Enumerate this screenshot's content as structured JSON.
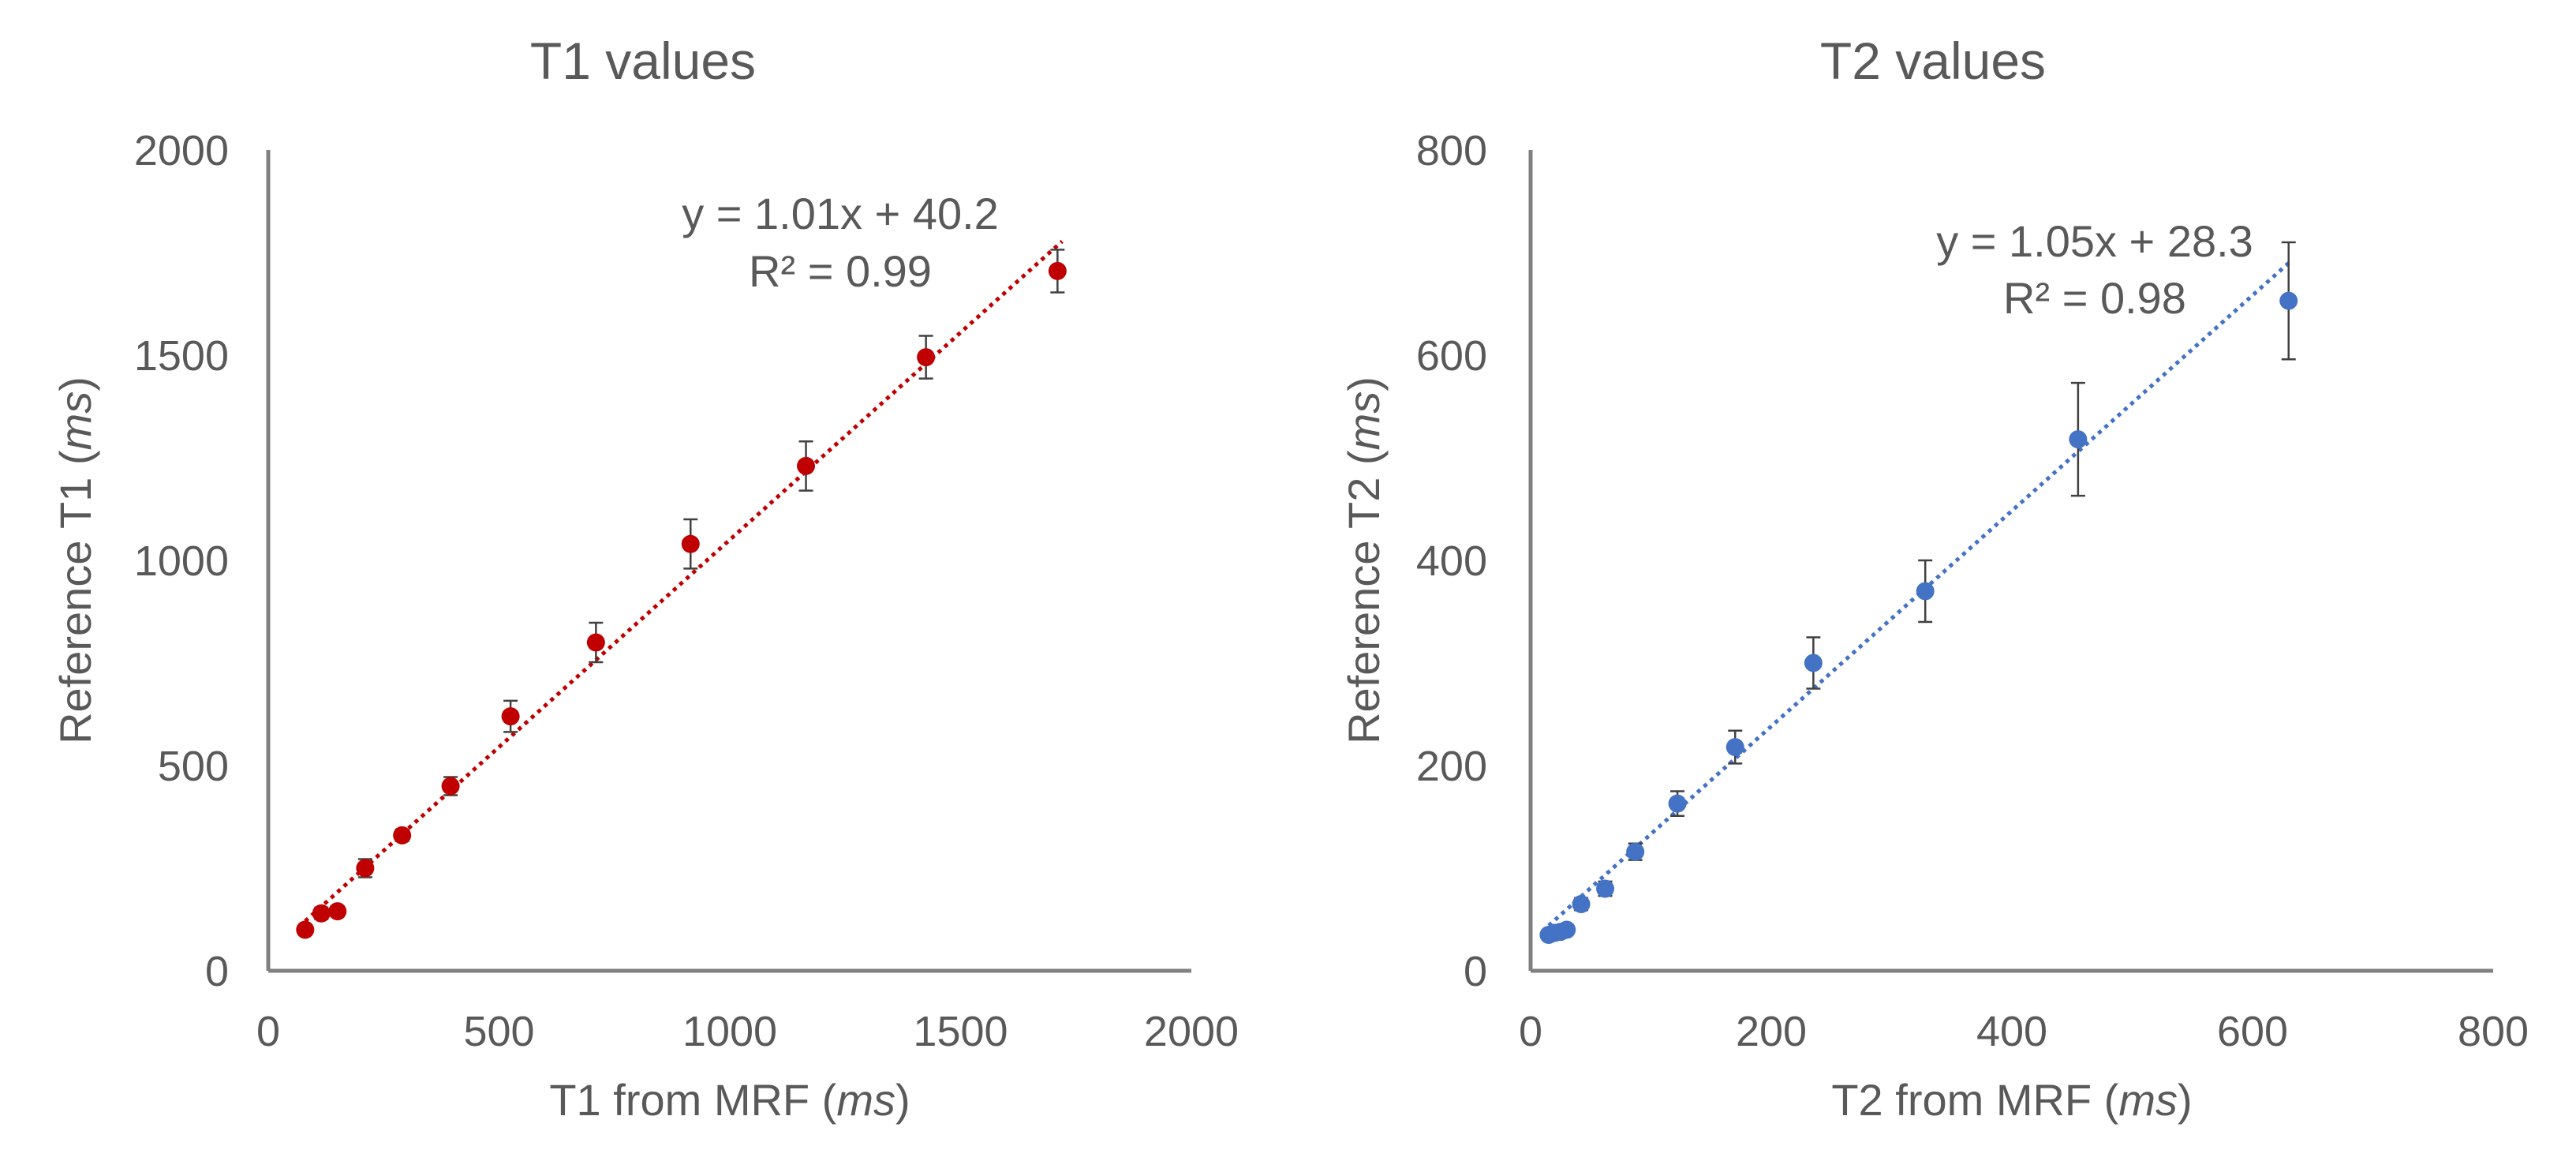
{
  "chart_data": [
    {
      "type": "scatter",
      "title": "T1 values",
      "xlabel_main": "T1 from MRF",
      "xlabel_unit": "ms",
      "ylabel_main": "Reference T1",
      "ylabel_unit": "ms",
      "xlim": [
        0,
        2000
      ],
      "ylim": [
        0,
        2000
      ],
      "xticks": [
        "0",
        "500",
        "1000",
        "1500",
        "2000"
      ],
      "yticks": [
        "0",
        "500",
        "1000",
        "1500",
        "2000"
      ],
      "grid": false,
      "color": "#C00000",
      "series": [
        {
          "name": "T1",
          "x": [
            80,
            115,
            150,
            210,
            290,
            395,
            525,
            710,
            915,
            1165,
            1425,
            1710
          ],
          "y": [
            100,
            140,
            145,
            250,
            330,
            450,
            620,
            800,
            1040,
            1230,
            1495,
            1705
          ],
          "error": [
            12,
            14,
            12,
            22,
            14,
            22,
            38,
            48,
            60,
            60,
            52,
            52
          ]
        }
      ],
      "trendline": {
        "slope": 1.01,
        "intercept": 40.2,
        "x_range": [
          80,
          1720
        ],
        "equation": "y = 1.01x + 40.2",
        "r2": "R² = 0.99"
      }
    },
    {
      "type": "scatter",
      "title": "T2 values",
      "xlabel_main": "T2 from MRF",
      "xlabel_unit": "ms",
      "ylabel_main": "Reference T2",
      "ylabel_unit": "ms",
      "xlim": [
        0,
        800
      ],
      "ylim": [
        0,
        800
      ],
      "xticks": [
        "0",
        "200",
        "400",
        "600",
        "800"
      ],
      "yticks": [
        "0",
        "200",
        "400",
        "600",
        "800"
      ],
      "grid": false,
      "color": "#4472C4",
      "series": [
        {
          "name": "T2",
          "x": [
            15,
            20,
            25,
            30,
            42,
            62,
            87,
            122,
            170,
            235,
            328,
            455,
            630
          ],
          "y": [
            35,
            37,
            38,
            40,
            65,
            80,
            116,
            163,
            218,
            300,
            370,
            518,
            653
          ],
          "error": [
            4,
            4,
            4,
            4,
            6,
            7,
            8,
            12,
            16,
            25,
            30,
            55,
            57
          ]
        }
      ],
      "trendline": {
        "slope": 1.05,
        "intercept": 28.3,
        "x_range": [
          15,
          632
        ],
        "equation": "y = 1.05x + 28.3",
        "r2": "R² = 0.98"
      }
    }
  ]
}
